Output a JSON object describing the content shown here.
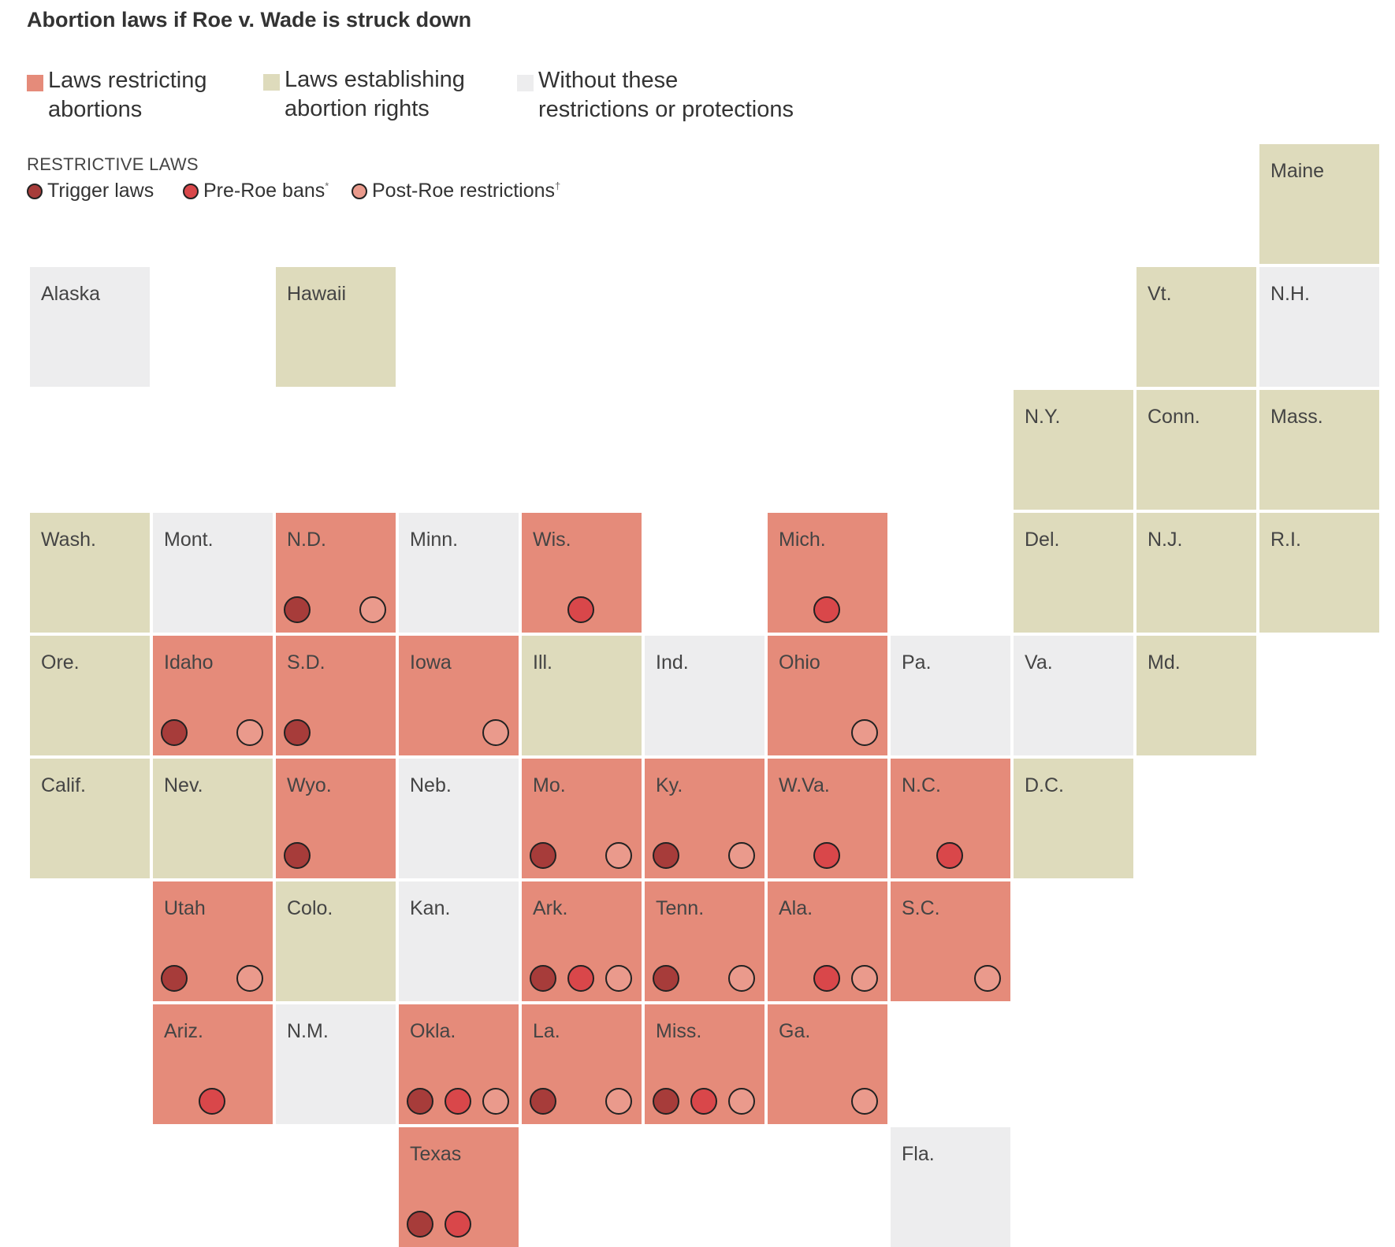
{
  "title": "Abortion laws if Roe v. Wade is struck down",
  "colors": {
    "restricting": "#e58b7a",
    "protecting": "#dedbbc",
    "neither": "#ededee",
    "trigger": "#a73c3a",
    "pre_roe": "#d9474a",
    "post_roe": "#ea9a8c"
  },
  "legend": {
    "categories": [
      {
        "key": "restricting",
        "line1": "Laws restricting",
        "line2": "abortions"
      },
      {
        "key": "protecting",
        "line1": "Laws establishing",
        "line2": "abortion rights"
      },
      {
        "key": "neither",
        "line1": "Without these",
        "line2": "restrictions or protections"
      }
    ],
    "restrictive_title": "RESTRICTIVE LAWS",
    "restrictive": [
      {
        "key": "trigger",
        "label": "Trigger laws",
        "mark": ""
      },
      {
        "key": "pre_roe",
        "label": "Pre-Roe bans",
        "mark": "*"
      },
      {
        "key": "post_roe",
        "label": "Post-Roe restrictions",
        "mark": "†"
      }
    ]
  },
  "states": [
    {
      "name": "Maine",
      "row": 0,
      "col": 10,
      "status": "protecting",
      "trigger": false,
      "pre_roe": false,
      "post_roe": false
    },
    {
      "name": "Alaska",
      "row": 1,
      "col": 0,
      "status": "neither",
      "trigger": false,
      "pre_roe": false,
      "post_roe": false
    },
    {
      "name": "Hawaii",
      "row": 1,
      "col": 2,
      "status": "protecting",
      "trigger": false,
      "pre_roe": false,
      "post_roe": false
    },
    {
      "name": "Vt.",
      "row": 1,
      "col": 9,
      "status": "protecting",
      "trigger": false,
      "pre_roe": false,
      "post_roe": false
    },
    {
      "name": "N.H.",
      "row": 1,
      "col": 10,
      "status": "neither",
      "trigger": false,
      "pre_roe": false,
      "post_roe": false
    },
    {
      "name": "N.Y.",
      "row": 2,
      "col": 8,
      "status": "protecting",
      "trigger": false,
      "pre_roe": false,
      "post_roe": false
    },
    {
      "name": "Conn.",
      "row": 2,
      "col": 9,
      "status": "protecting",
      "trigger": false,
      "pre_roe": false,
      "post_roe": false
    },
    {
      "name": "Mass.",
      "row": 2,
      "col": 10,
      "status": "protecting",
      "trigger": false,
      "pre_roe": false,
      "post_roe": false
    },
    {
      "name": "Wash.",
      "row": 3,
      "col": 0,
      "status": "protecting",
      "trigger": false,
      "pre_roe": false,
      "post_roe": false
    },
    {
      "name": "Mont.",
      "row": 3,
      "col": 1,
      "status": "neither",
      "trigger": false,
      "pre_roe": false,
      "post_roe": false
    },
    {
      "name": "N.D.",
      "row": 3,
      "col": 2,
      "status": "restricting",
      "trigger": true,
      "pre_roe": false,
      "post_roe": true
    },
    {
      "name": "Minn.",
      "row": 3,
      "col": 3,
      "status": "neither",
      "trigger": false,
      "pre_roe": false,
      "post_roe": false
    },
    {
      "name": "Wis.",
      "row": 3,
      "col": 4,
      "status": "restricting",
      "trigger": false,
      "pre_roe": true,
      "post_roe": false
    },
    {
      "name": "Mich.",
      "row": 3,
      "col": 6,
      "status": "restricting",
      "trigger": false,
      "pre_roe": true,
      "post_roe": false
    },
    {
      "name": "Del.",
      "row": 3,
      "col": 8,
      "status": "protecting",
      "trigger": false,
      "pre_roe": false,
      "post_roe": false
    },
    {
      "name": "N.J.",
      "row": 3,
      "col": 9,
      "status": "protecting",
      "trigger": false,
      "pre_roe": false,
      "post_roe": false
    },
    {
      "name": "R.I.",
      "row": 3,
      "col": 10,
      "status": "protecting",
      "trigger": false,
      "pre_roe": false,
      "post_roe": false
    },
    {
      "name": "Ore.",
      "row": 4,
      "col": 0,
      "status": "protecting",
      "trigger": false,
      "pre_roe": false,
      "post_roe": false
    },
    {
      "name": "Idaho",
      "row": 4,
      "col": 1,
      "status": "restricting",
      "trigger": true,
      "pre_roe": false,
      "post_roe": true
    },
    {
      "name": "S.D.",
      "row": 4,
      "col": 2,
      "status": "restricting",
      "trigger": true,
      "pre_roe": false,
      "post_roe": false
    },
    {
      "name": "Iowa",
      "row": 4,
      "col": 3,
      "status": "restricting",
      "trigger": false,
      "pre_roe": false,
      "post_roe": true
    },
    {
      "name": "Ill.",
      "row": 4,
      "col": 4,
      "status": "protecting",
      "trigger": false,
      "pre_roe": false,
      "post_roe": false
    },
    {
      "name": "Ind.",
      "row": 4,
      "col": 5,
      "status": "neither",
      "trigger": false,
      "pre_roe": false,
      "post_roe": false
    },
    {
      "name": "Ohio",
      "row": 4,
      "col": 6,
      "status": "restricting",
      "trigger": false,
      "pre_roe": false,
      "post_roe": true
    },
    {
      "name": "Pa.",
      "row": 4,
      "col": 7,
      "status": "neither",
      "trigger": false,
      "pre_roe": false,
      "post_roe": false
    },
    {
      "name": "Va.",
      "row": 4,
      "col": 8,
      "status": "neither",
      "trigger": false,
      "pre_roe": false,
      "post_roe": false
    },
    {
      "name": "Md.",
      "row": 4,
      "col": 9,
      "status": "protecting",
      "trigger": false,
      "pre_roe": false,
      "post_roe": false
    },
    {
      "name": "Calif.",
      "row": 5,
      "col": 0,
      "status": "protecting",
      "trigger": false,
      "pre_roe": false,
      "post_roe": false
    },
    {
      "name": "Nev.",
      "row": 5,
      "col": 1,
      "status": "protecting",
      "trigger": false,
      "pre_roe": false,
      "post_roe": false
    },
    {
      "name": "Wyo.",
      "row": 5,
      "col": 2,
      "status": "restricting",
      "trigger": true,
      "pre_roe": false,
      "post_roe": false
    },
    {
      "name": "Neb.",
      "row": 5,
      "col": 3,
      "status": "neither",
      "trigger": false,
      "pre_roe": false,
      "post_roe": false
    },
    {
      "name": "Mo.",
      "row": 5,
      "col": 4,
      "status": "restricting",
      "trigger": true,
      "pre_roe": false,
      "post_roe": true
    },
    {
      "name": "Ky.",
      "row": 5,
      "col": 5,
      "status": "restricting",
      "trigger": true,
      "pre_roe": false,
      "post_roe": true
    },
    {
      "name": "W.Va.",
      "row": 5,
      "col": 6,
      "status": "restricting",
      "trigger": false,
      "pre_roe": true,
      "post_roe": false
    },
    {
      "name": "N.C.",
      "row": 5,
      "col": 7,
      "status": "restricting",
      "trigger": false,
      "pre_roe": true,
      "post_roe": false
    },
    {
      "name": "D.C.",
      "row": 5,
      "col": 8,
      "status": "protecting",
      "trigger": false,
      "pre_roe": false,
      "post_roe": false
    },
    {
      "name": "Utah",
      "row": 6,
      "col": 1,
      "status": "restricting",
      "trigger": true,
      "pre_roe": false,
      "post_roe": true
    },
    {
      "name": "Colo.",
      "row": 6,
      "col": 2,
      "status": "protecting",
      "trigger": false,
      "pre_roe": false,
      "post_roe": false
    },
    {
      "name": "Kan.",
      "row": 6,
      "col": 3,
      "status": "neither",
      "trigger": false,
      "pre_roe": false,
      "post_roe": false
    },
    {
      "name": "Ark.",
      "row": 6,
      "col": 4,
      "status": "restricting",
      "trigger": true,
      "pre_roe": true,
      "post_roe": true
    },
    {
      "name": "Tenn.",
      "row": 6,
      "col": 5,
      "status": "restricting",
      "trigger": true,
      "pre_roe": false,
      "post_roe": true
    },
    {
      "name": "Ala.",
      "row": 6,
      "col": 6,
      "status": "restricting",
      "trigger": false,
      "pre_roe": true,
      "post_roe": true
    },
    {
      "name": "S.C.",
      "row": 6,
      "col": 7,
      "status": "restricting",
      "trigger": false,
      "pre_roe": false,
      "post_roe": true
    },
    {
      "name": "Ariz.",
      "row": 7,
      "col": 1,
      "status": "restricting",
      "trigger": false,
      "pre_roe": true,
      "post_roe": false
    },
    {
      "name": "N.M.",
      "row": 7,
      "col": 2,
      "status": "neither",
      "trigger": false,
      "pre_roe": false,
      "post_roe": false
    },
    {
      "name": "Okla.",
      "row": 7,
      "col": 3,
      "status": "restricting",
      "trigger": true,
      "pre_roe": true,
      "post_roe": true
    },
    {
      "name": "La.",
      "row": 7,
      "col": 4,
      "status": "restricting",
      "trigger": true,
      "pre_roe": false,
      "post_roe": true
    },
    {
      "name": "Miss.",
      "row": 7,
      "col": 5,
      "status": "restricting",
      "trigger": true,
      "pre_roe": true,
      "post_roe": true
    },
    {
      "name": "Ga.",
      "row": 7,
      "col": 6,
      "status": "restricting",
      "trigger": false,
      "pre_roe": false,
      "post_roe": true
    },
    {
      "name": "Texas",
      "row": 8,
      "col": 3,
      "status": "restricting",
      "trigger": true,
      "pre_roe": true,
      "post_roe": false
    },
    {
      "name": "Fla.",
      "row": 8,
      "col": 7,
      "status": "neither",
      "trigger": false,
      "pre_roe": false,
      "post_roe": false
    }
  ]
}
